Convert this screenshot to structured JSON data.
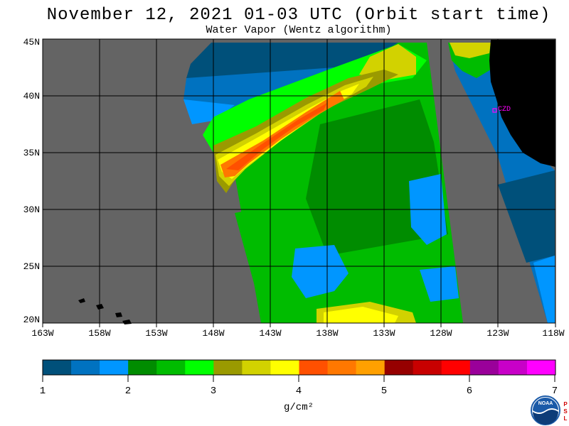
{
  "title": "November 12, 2021  01-03 UTC  (Orbit start time)",
  "subtitle": "Water Vapor (Wentz algorithm)",
  "lat_labels": [
    "45N",
    "40N",
    "35N",
    "30N",
    "25N",
    "20N"
  ],
  "lon_labels": [
    "163W",
    "158W",
    "153W",
    "148W",
    "143W",
    "138W",
    "133W",
    "128W",
    "123W",
    "118W"
  ],
  "station_label": "CZD",
  "colorbar": {
    "tick_labels": [
      "1",
      "2",
      "3",
      "4",
      "5",
      "6",
      "7"
    ],
    "units": "g/cm²",
    "colors": [
      "#00507a",
      "#0072c0",
      "#0096ff",
      "#008c00",
      "#00bc00",
      "#00ff00",
      "#9a9a00",
      "#d2d200",
      "#ffff00",
      "#ff5000",
      "#ff7800",
      "#ffa000",
      "#960000",
      "#c80000",
      "#ff0000",
      "#9a009a",
      "#c800c8",
      "#ff00ff"
    ]
  },
  "map_colors": {
    "no_data": "#646464",
    "land": "#000000",
    "grid": "#000000"
  },
  "logo_text": "NOAA",
  "psl_letters": [
    "P",
    "S",
    "L"
  ]
}
